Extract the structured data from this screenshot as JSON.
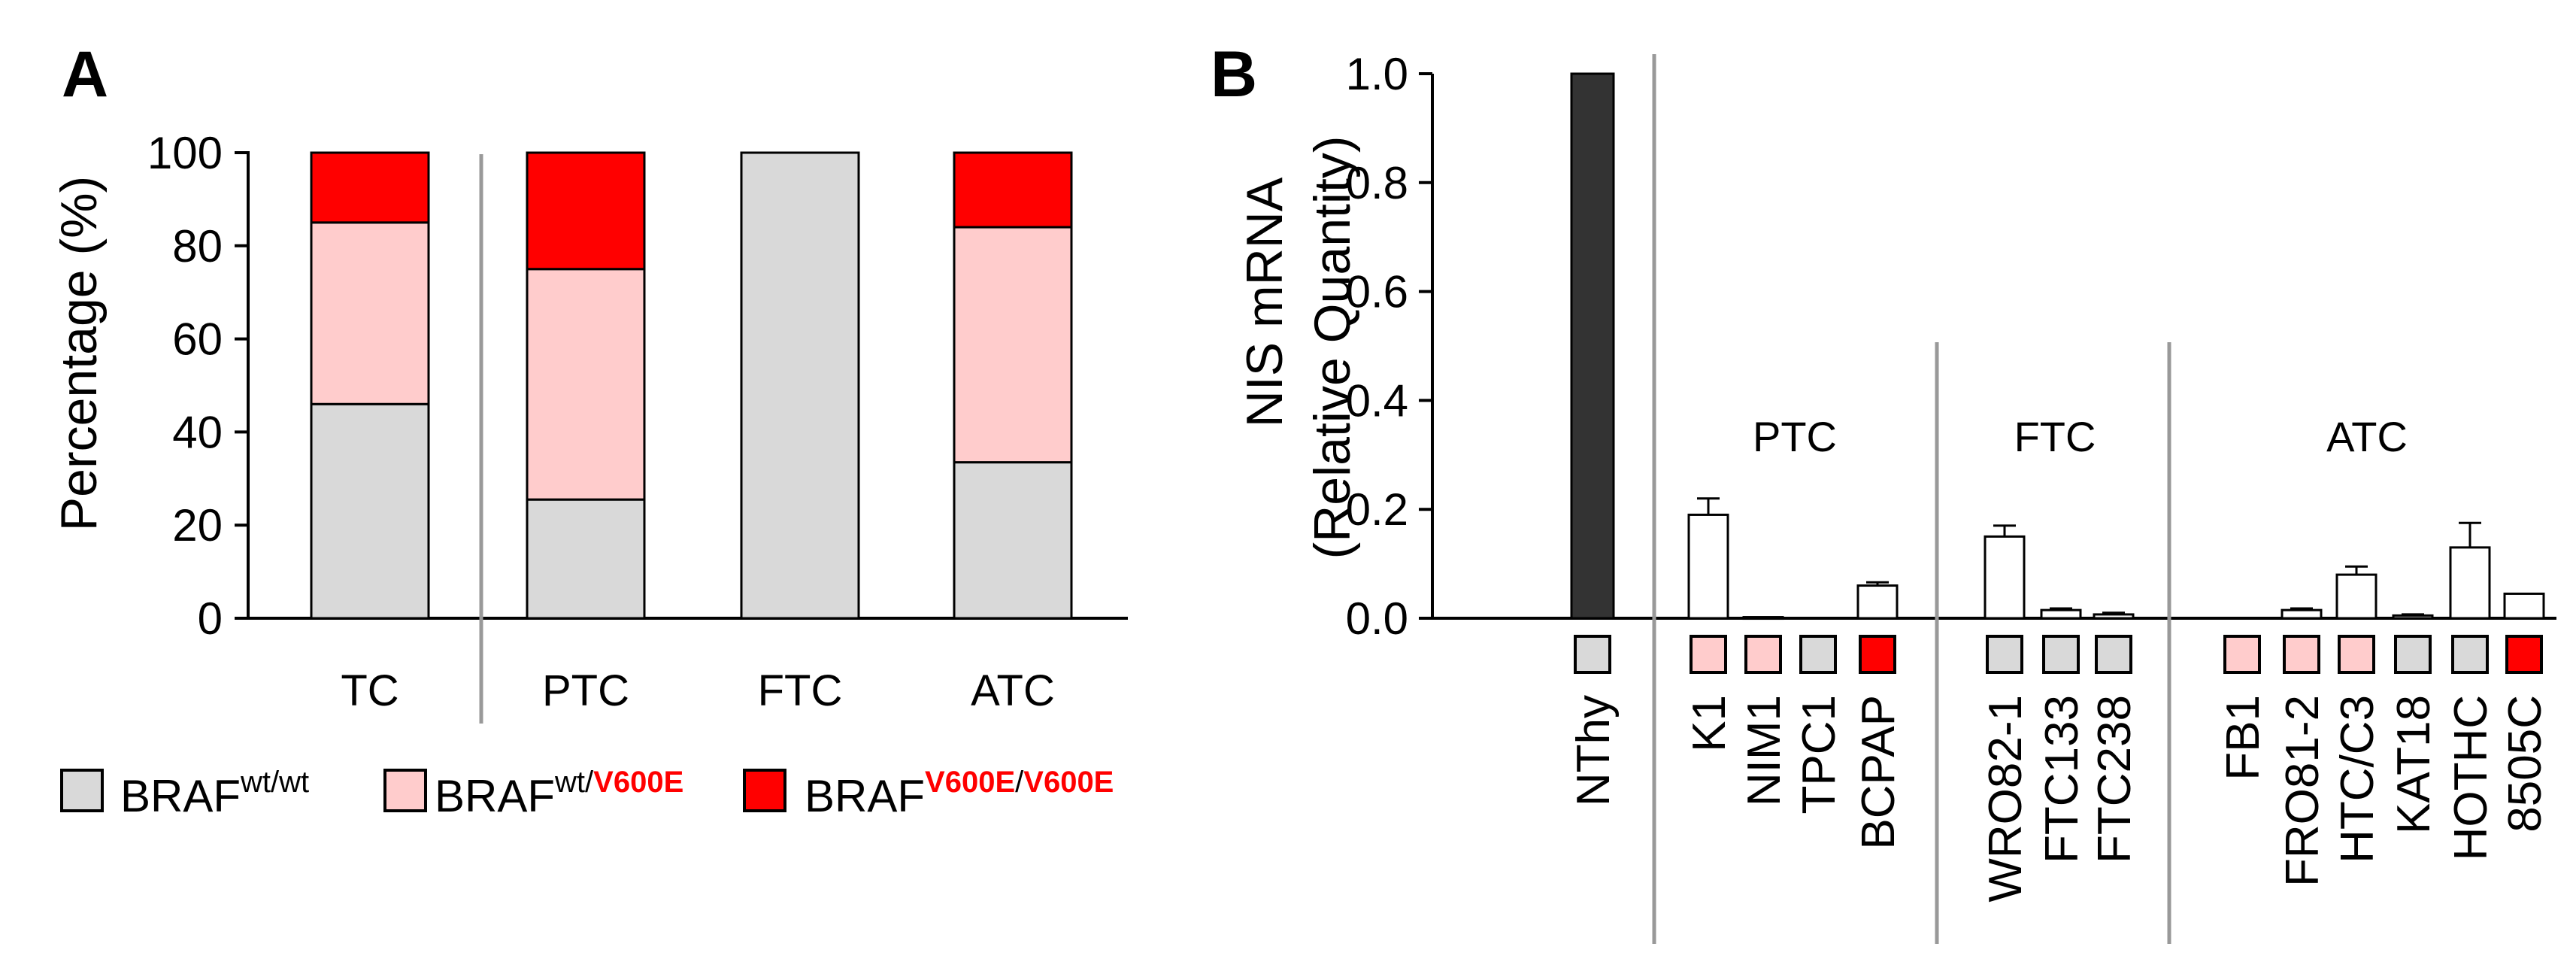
{
  "panels": {
    "a": "A",
    "b": "B"
  },
  "colors": {
    "wt_wt": "#d9d9d9",
    "wt_v600e": "#ffcccc",
    "v600e_v600e": "#ff0000",
    "nthy_bar": "#333333",
    "bar_outline": "#000000",
    "separator": "#999999"
  },
  "legend": {
    "base": "BRAF",
    "wt_wt_sup": "wt/wt",
    "wt_v600e_sup_a": "wt/",
    "wt_v600e_sup_b": "V600E",
    "v600e_sup_a": "V600E",
    "v600e_sup_slash": "/",
    "v600e_sup_b": "V600E"
  },
  "chart_data": [
    {
      "type": "bar",
      "stacked": true,
      "panel": "A",
      "ylabel": "Percentage (%)",
      "ylim": [
        0,
        100
      ],
      "yticks": [
        0,
        20,
        40,
        60,
        80,
        100
      ],
      "categories": [
        "TC",
        "PTC",
        "FTC",
        "ATC"
      ],
      "series": [
        {
          "name": "BRAF wt/wt",
          "key": "wt_wt",
          "values": [
            46,
            25.5,
            100,
            33.5
          ]
        },
        {
          "name": "BRAF wt/V600E",
          "key": "wt_v600e",
          "values": [
            39,
            49.5,
            0,
            50.5
          ]
        },
        {
          "name": "BRAF V600E/V600E",
          "key": "v600e_v600e",
          "values": [
            15,
            25,
            0,
            16
          ]
        }
      ]
    },
    {
      "type": "bar",
      "panel": "B",
      "ylabel": "NIS mRNA",
      "ylabel2": "(Relative Quantity)",
      "ylim": [
        0,
        1.0
      ],
      "yticks": [
        "0.0",
        "0.2",
        "0.4",
        "0.6",
        "0.8",
        "1.0"
      ],
      "groups": [
        "PTC",
        "FTC",
        "ATC"
      ],
      "categories": [
        "NThy",
        "K1",
        "NIM1",
        "TPC1",
        "BCPAP",
        "WRO82-1",
        "FTC133",
        "FTC238",
        "FB1",
        "FRO81-2",
        "HTC/C3",
        "KAT18",
        "HOTHC",
        "8505C"
      ],
      "values": [
        1.0,
        0.19,
        0.002,
        0.0,
        0.06,
        0.15,
        0.015,
        0.007,
        0.0,
        0.015,
        0.08,
        0.005,
        0.13,
        0.045
      ],
      "errors": [
        0,
        0.03,
        0,
        0,
        0.006,
        0.02,
        0.003,
        0.003,
        0,
        0.003,
        0.015,
        0.002,
        0.045,
        0
      ],
      "genotypes": [
        "wt_wt",
        "wt_v600e",
        "wt_v600e",
        "wt_wt",
        "v600e_v600e",
        "wt_wt",
        "wt_wt",
        "wt_wt",
        "wt_v600e",
        "wt_v600e",
        "wt_v600e",
        "wt_wt",
        "wt_wt",
        "v600e_v600e"
      ]
    }
  ]
}
